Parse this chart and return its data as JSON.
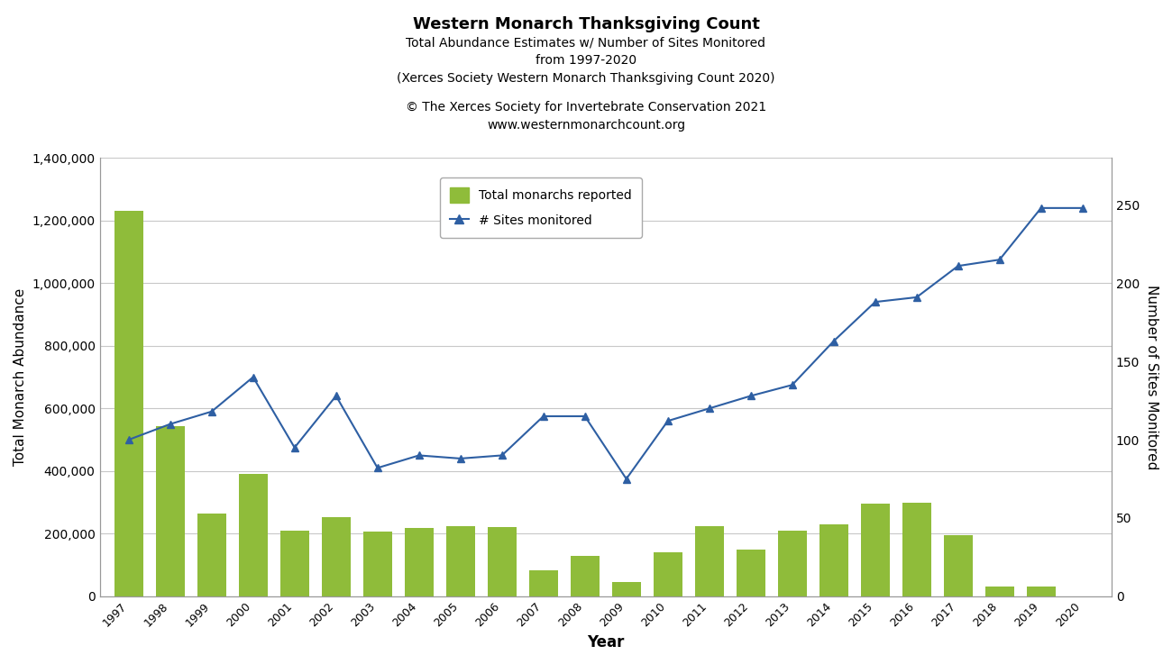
{
  "years": [
    1997,
    1998,
    1999,
    2000,
    2001,
    2002,
    2003,
    2004,
    2005,
    2006,
    2007,
    2008,
    2009,
    2010,
    2011,
    2012,
    2013,
    2014,
    2015,
    2016,
    2017,
    2018,
    2019,
    2020
  ],
  "monarchs": [
    1230000,
    544000,
    265000,
    390000,
    210000,
    253000,
    207000,
    218000,
    225000,
    220000,
    83000,
    130000,
    45000,
    140000,
    225000,
    150000,
    210000,
    230000,
    295000,
    300000,
    195000,
    30000,
    30000,
    0
  ],
  "sites": [
    100,
    110,
    118,
    140,
    95,
    128,
    82,
    90,
    88,
    90,
    115,
    115,
    75,
    112,
    120,
    128,
    135,
    163,
    188,
    191,
    211,
    215,
    248,
    248
  ],
  "bar_color": "#8fbc3a",
  "line_color": "#2e5fa3",
  "title_main": "Western Monarch Thanksgiving Count",
  "title_sub1": "Total Abundance Estimates w/ Number of Sites Monitored",
  "title_sub2": "from 1997-2020",
  "title_sub3": "(Xerces Society Western Monarch Thanksgiving Count 2020)",
  "copyright_line1": "© The Xerces Society for Invertebrate Conservation 2021",
  "copyright_line2": "www.westernmonarchcount.org",
  "ylabel_left": "Total Monarch Abundance",
  "ylabel_right": "Number of Sites Monitored",
  "xlabel": "Year",
  "ylim_left": [
    0,
    1400000
  ],
  "ylim_right": [
    0,
    280
  ],
  "yticks_left": [
    0,
    200000,
    400000,
    600000,
    800000,
    1000000,
    1200000,
    1400000
  ],
  "yticks_right": [
    0,
    50,
    100,
    150,
    200,
    250
  ],
  "legend_monarchs": "Total monarchs reported",
  "legend_sites": "# Sites monitored",
  "background_color": "#ffffff",
  "grid_color": "#c8c8c8"
}
